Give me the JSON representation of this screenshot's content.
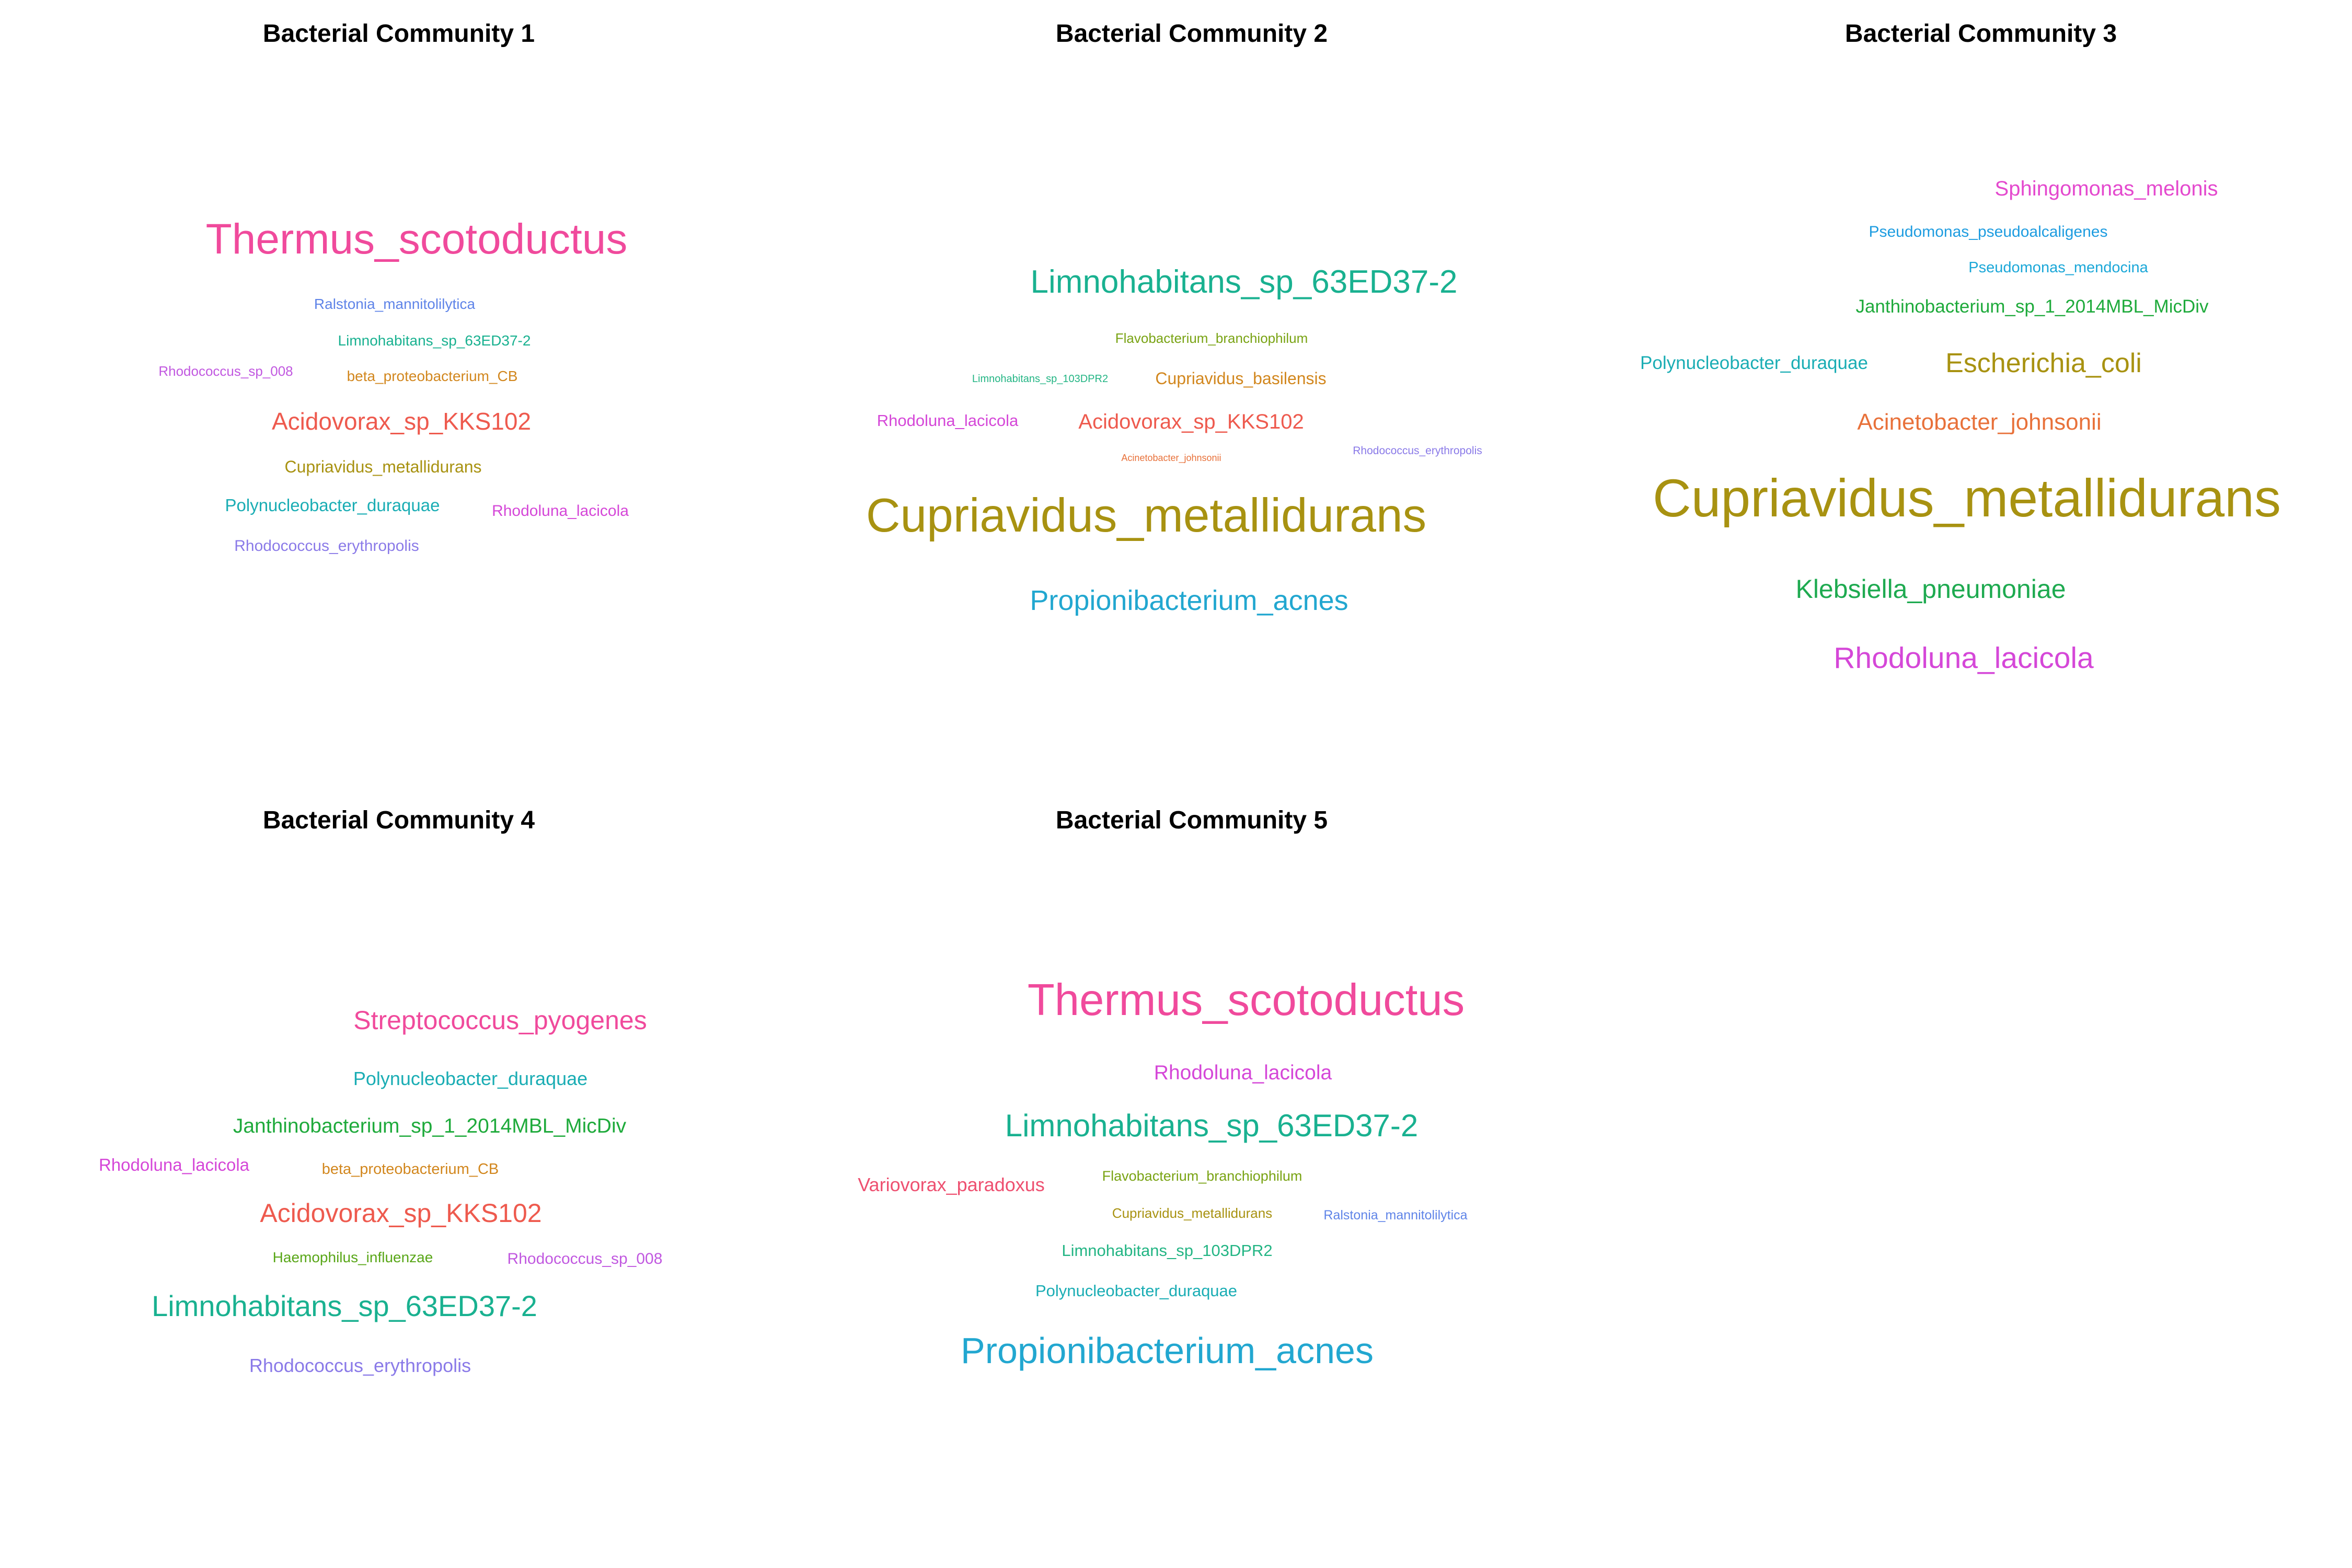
{
  "chart_data": [
    {
      "type": "wordcloud",
      "title": "Bacterial Community 1",
      "words": [
        {
          "text": "Thermus_scotoductus",
          "color": "#F04A9C",
          "weight": 5
        },
        {
          "text": "Ralstonia_mannitolilytica",
          "color": "#5F84E8",
          "weight": 1
        },
        {
          "text": "Limnohabitans_sp_63ED37-2",
          "color": "#19B190",
          "weight": 1
        },
        {
          "text": "Rhodococcus_sp_008",
          "color": "#C158E0",
          "weight": 1
        },
        {
          "text": "beta_proteobacterium_CB",
          "color": "#D2871E",
          "weight": 1
        },
        {
          "text": "Acidovorax_sp_KKS102",
          "color": "#EE5A4E",
          "weight": 2
        },
        {
          "text": "Cupriavidus_metallidurans",
          "color": "#A89211",
          "weight": 1
        },
        {
          "text": "Polynucleobacter_duraquae",
          "color": "#1AADB4",
          "weight": 1
        },
        {
          "text": "Rhodoluna_lacicola",
          "color": "#D547D8",
          "weight": 1
        },
        {
          "text": "Rhodococcus_erythropolis",
          "color": "#8A7AE8",
          "weight": 1
        }
      ]
    },
    {
      "type": "wordcloud",
      "title": "Bacterial Community 2",
      "words": [
        {
          "text": "Limnohabitans_sp_63ED37-2",
          "color": "#19B190",
          "weight": 3
        },
        {
          "text": "Flavobacterium_branchiophilum",
          "color": "#79A313",
          "weight": 1
        },
        {
          "text": "Limnohabitans_sp_103DPR2",
          "color": "#23B584",
          "weight": 0.5
        },
        {
          "text": "Cupriavidus_basilensis",
          "color": "#D2871E",
          "weight": 1
        },
        {
          "text": "Rhodoluna_lacicola",
          "color": "#D547D8",
          "weight": 1
        },
        {
          "text": "Acidovorax_sp_KKS102",
          "color": "#EE5A4E",
          "weight": 2
        },
        {
          "text": "Acinetobacter_johnsonii",
          "color": "#E8713A",
          "weight": 0.5
        },
        {
          "text": "Rhodococcus_erythropolis",
          "color": "#8A7AE8",
          "weight": 0.5
        },
        {
          "text": "Cupriavidus_metallidurans",
          "color": "#A89211",
          "weight": 6
        },
        {
          "text": "Propionibacterium_acnes",
          "color": "#22A7D0",
          "weight": 3
        }
      ]
    },
    {
      "type": "wordcloud",
      "title": "Bacterial Community 3",
      "words": [
        {
          "text": "Sphingomonas_melonis",
          "color": "#E449CE",
          "weight": 2
        },
        {
          "text": "Pseudomonas_pseudoalcaligenes",
          "color": "#1D9CE0",
          "weight": 1
        },
        {
          "text": "Pseudomonas_mendocina",
          "color": "#1AA7D8",
          "weight": 1
        },
        {
          "text": "Janthinobacterium_sp_1_2014MBL_MicDiv",
          "color": "#1EAA3B",
          "weight": 1
        },
        {
          "text": "Polynucleobacter_duraquae",
          "color": "#1AADB4",
          "weight": 1
        },
        {
          "text": "Escherichia_coli",
          "color": "#A89211",
          "weight": 3
        },
        {
          "text": "Acinetobacter_johnsonii",
          "color": "#E8713A",
          "weight": 2
        },
        {
          "text": "Cupriavidus_metallidurans",
          "color": "#A89211",
          "weight": 6
        },
        {
          "text": "Klebsiella_pneumoniae",
          "color": "#1EAA50",
          "weight": 3
        },
        {
          "text": "Rhodoluna_lacicola",
          "color": "#D547D8",
          "weight": 3
        }
      ]
    },
    {
      "type": "wordcloud",
      "title": "Bacterial Community 4",
      "words": [
        {
          "text": "Streptococcus_pyogenes",
          "color": "#F04A9C",
          "weight": 3
        },
        {
          "text": "Polynucleobacter_duraquae",
          "color": "#1AADB4",
          "weight": 2
        },
        {
          "text": "Janthinobacterium_sp_1_2014MBL_MicDiv",
          "color": "#1EAA3B",
          "weight": 2
        },
        {
          "text": "Rhodoluna_lacicola",
          "color": "#D547D8",
          "weight": 2
        },
        {
          "text": "beta_proteobacterium_CB",
          "color": "#D2871E",
          "weight": 1
        },
        {
          "text": "Acidovorax_sp_KKS102",
          "color": "#EE5A4E",
          "weight": 3
        },
        {
          "text": "Haemophilus_influenzae",
          "color": "#58A617",
          "weight": 1
        },
        {
          "text": "Rhodococcus_sp_008",
          "color": "#C158E0",
          "weight": 1
        },
        {
          "text": "Limnohabitans_sp_63ED37-2",
          "color": "#19B190",
          "weight": 3
        },
        {
          "text": "Rhodococcus_erythropolis",
          "color": "#8A7AE8",
          "weight": 2
        }
      ]
    },
    {
      "type": "wordcloud",
      "title": "Bacterial Community 5",
      "words": [
        {
          "text": "Thermus_scotoductus",
          "color": "#F04A9C",
          "weight": 5
        },
        {
          "text": "Rhodoluna_lacicola",
          "color": "#D547D8",
          "weight": 2
        },
        {
          "text": "Limnohabitans_sp_63ED37-2",
          "color": "#19B190",
          "weight": 3
        },
        {
          "text": "Variovorax_paradoxus",
          "color": "#EE5070",
          "weight": 2
        },
        {
          "text": "Flavobacterium_branchiophilum",
          "color": "#79A313",
          "weight": 1
        },
        {
          "text": "Cupriavidus_metallidurans",
          "color": "#A89211",
          "weight": 1
        },
        {
          "text": "Ralstonia_mannitolilytica",
          "color": "#5F84E8",
          "weight": 1
        },
        {
          "text": "Limnohabitans_sp_103DPR2",
          "color": "#23B584",
          "weight": 2
        },
        {
          "text": "Polynucleobacter_duraquae",
          "color": "#1AADB4",
          "weight": 2
        },
        {
          "text": "Propionibacterium_acnes",
          "color": "#22A7D0",
          "weight": 4
        }
      ]
    }
  ]
}
